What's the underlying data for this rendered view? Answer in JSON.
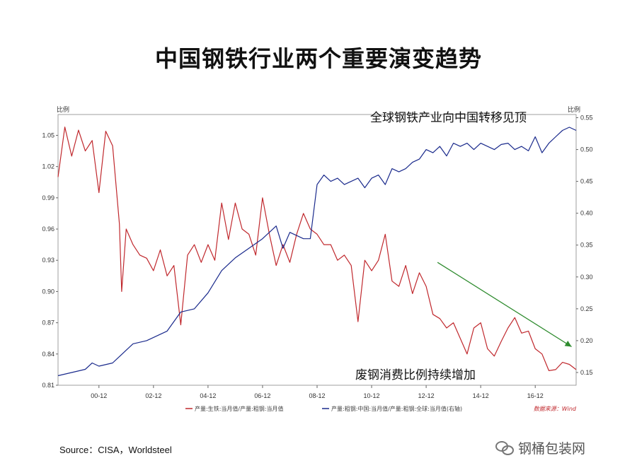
{
  "page": {
    "title": "中国钢铁行业两个重要演变趋势",
    "source": "Source：CISA，Worldsteel",
    "watermark": "钢桶包装网",
    "watermark_icon": "wechat-icon"
  },
  "chart_data": {
    "type": "line",
    "title": "",
    "x_ticks": [
      "00-12",
      "02-12",
      "04-12",
      "06-12",
      "08-12",
      "10-12",
      "12-12",
      "14-12",
      "16-12"
    ],
    "x_range": [
      "1999-06",
      "2018-06"
    ],
    "y_left": {
      "label": "比例",
      "range": [
        0.81,
        1.07
      ],
      "ticks": [
        0.81,
        0.84,
        0.87,
        0.9,
        0.93,
        0.96,
        0.99,
        1.02,
        1.05
      ]
    },
    "y_right": {
      "label": "比例",
      "range": [
        0.13,
        0.555
      ],
      "ticks": [
        0.15,
        0.2,
        0.25,
        0.3,
        0.35,
        0.4,
        0.45,
        0.5,
        0.55
      ]
    },
    "series": [
      {
        "name": "产量:生铁:当月值/产量:粗钢:当月值",
        "axis": "left",
        "color": "#c0282d",
        "points": [
          [
            "1999-06",
            1.01
          ],
          [
            "1999-09",
            1.058
          ],
          [
            "1999-12",
            1.03
          ],
          [
            "2000-03",
            1.055
          ],
          [
            "2000-06",
            1.035
          ],
          [
            "2000-09",
            1.045
          ],
          [
            "2000-12",
            0.995
          ],
          [
            "2001-03",
            1.054
          ],
          [
            "2001-06",
            1.04
          ],
          [
            "2001-09",
            0.965
          ],
          [
            "2001-10",
            0.9
          ],
          [
            "2001-12",
            0.96
          ],
          [
            "2002-03",
            0.945
          ],
          [
            "2002-06",
            0.935
          ],
          [
            "2002-09",
            0.932
          ],
          [
            "2002-12",
            0.92
          ],
          [
            "2003-03",
            0.94
          ],
          [
            "2003-06",
            0.915
          ],
          [
            "2003-09",
            0.925
          ],
          [
            "2003-12",
            0.868
          ],
          [
            "2004-03",
            0.935
          ],
          [
            "2004-06",
            0.945
          ],
          [
            "2004-09",
            0.928
          ],
          [
            "2004-12",
            0.945
          ],
          [
            "2005-03",
            0.93
          ],
          [
            "2005-06",
            0.985
          ],
          [
            "2005-09",
            0.95
          ],
          [
            "2005-12",
            0.985
          ],
          [
            "2006-03",
            0.96
          ],
          [
            "2006-06",
            0.955
          ],
          [
            "2006-09",
            0.935
          ],
          [
            "2006-12",
            0.99
          ],
          [
            "2007-03",
            0.955
          ],
          [
            "2007-06",
            0.925
          ],
          [
            "2007-09",
            0.945
          ],
          [
            "2007-12",
            0.928
          ],
          [
            "2008-03",
            0.955
          ],
          [
            "2008-06",
            0.975
          ],
          [
            "2008-09",
            0.96
          ],
          [
            "2008-12",
            0.955
          ],
          [
            "2009-03",
            0.945
          ],
          [
            "2009-06",
            0.945
          ],
          [
            "2009-09",
            0.93
          ],
          [
            "2009-12",
            0.935
          ],
          [
            "2010-03",
            0.925
          ],
          [
            "2010-06",
            0.871
          ],
          [
            "2010-09",
            0.93
          ],
          [
            "2010-12",
            0.92
          ],
          [
            "2011-03",
            0.93
          ],
          [
            "2011-06",
            0.955
          ],
          [
            "2011-09",
            0.91
          ],
          [
            "2011-12",
            0.905
          ],
          [
            "2012-03",
            0.925
          ],
          [
            "2012-06",
            0.898
          ],
          [
            "2012-09",
            0.918
          ],
          [
            "2012-12",
            0.905
          ],
          [
            "2013-03",
            0.878
          ],
          [
            "2013-06",
            0.874
          ],
          [
            "2013-09",
            0.865
          ],
          [
            "2013-12",
            0.87
          ],
          [
            "2014-03",
            0.855
          ],
          [
            "2014-06",
            0.84
          ],
          [
            "2014-09",
            0.865
          ],
          [
            "2014-12",
            0.87
          ],
          [
            "2015-03",
            0.845
          ],
          [
            "2015-06",
            0.838
          ],
          [
            "2015-09",
            0.852
          ],
          [
            "2015-12",
            0.865
          ],
          [
            "2016-03",
            0.875
          ],
          [
            "2016-06",
            0.86
          ],
          [
            "2016-09",
            0.862
          ],
          [
            "2016-12",
            0.845
          ],
          [
            "2017-03",
            0.84
          ],
          [
            "2017-06",
            0.824
          ],
          [
            "2017-09",
            0.825
          ],
          [
            "2017-12",
            0.832
          ],
          [
            "2018-03",
            0.83
          ],
          [
            "2018-06",
            0.825
          ]
        ]
      },
      {
        "name": "产量:粗钢:中国:当月值/产量:粗钢:全球:当月值(右轴)",
        "axis": "right",
        "color": "#1a2a8c",
        "points": [
          [
            "1999-06",
            0.145
          ],
          [
            "1999-12",
            0.15
          ],
          [
            "2000-06",
            0.155
          ],
          [
            "2000-09",
            0.165
          ],
          [
            "2000-12",
            0.16
          ],
          [
            "2001-06",
            0.165
          ],
          [
            "2001-12",
            0.185
          ],
          [
            "2002-03",
            0.195
          ],
          [
            "2002-09",
            0.2
          ],
          [
            "2002-12",
            0.205
          ],
          [
            "2003-06",
            0.215
          ],
          [
            "2003-12",
            0.245
          ],
          [
            "2004-06",
            0.25
          ],
          [
            "2004-12",
            0.275
          ],
          [
            "2005-06",
            0.31
          ],
          [
            "2005-12",
            0.33
          ],
          [
            "2006-06",
            0.345
          ],
          [
            "2006-12",
            0.36
          ],
          [
            "2007-06",
            0.38
          ],
          [
            "2007-09",
            0.345
          ],
          [
            "2007-12",
            0.37
          ],
          [
            "2008-03",
            0.365
          ],
          [
            "2008-06",
            0.36
          ],
          [
            "2008-09",
            0.36
          ],
          [
            "2008-12",
            0.445
          ],
          [
            "2009-03",
            0.46
          ],
          [
            "2009-06",
            0.45
          ],
          [
            "2009-09",
            0.455
          ],
          [
            "2009-12",
            0.445
          ],
          [
            "2010-03",
            0.45
          ],
          [
            "2010-06",
            0.455
          ],
          [
            "2010-09",
            0.44
          ],
          [
            "2010-12",
            0.455
          ],
          [
            "2011-03",
            0.46
          ],
          [
            "2011-06",
            0.445
          ],
          [
            "2011-09",
            0.47
          ],
          [
            "2011-12",
            0.465
          ],
          [
            "2012-03",
            0.47
          ],
          [
            "2012-06",
            0.48
          ],
          [
            "2012-09",
            0.485
          ],
          [
            "2012-12",
            0.5
          ],
          [
            "2013-03",
            0.495
          ],
          [
            "2013-06",
            0.505
          ],
          [
            "2013-09",
            0.49
          ],
          [
            "2013-12",
            0.51
          ],
          [
            "2014-03",
            0.505
          ],
          [
            "2014-06",
            0.51
          ],
          [
            "2014-09",
            0.5
          ],
          [
            "2014-12",
            0.51
          ],
          [
            "2015-03",
            0.505
          ],
          [
            "2015-06",
            0.5
          ],
          [
            "2015-09",
            0.508
          ],
          [
            "2015-12",
            0.51
          ],
          [
            "2016-03",
            0.5
          ],
          [
            "2016-06",
            0.505
          ],
          [
            "2016-09",
            0.498
          ],
          [
            "2016-12",
            0.52
          ],
          [
            "2017-03",
            0.495
          ],
          [
            "2017-06",
            0.51
          ],
          [
            "2017-09",
            0.52
          ],
          [
            "2017-12",
            0.53
          ],
          [
            "2018-03",
            0.535
          ],
          [
            "2018-06",
            0.53
          ]
        ]
      }
    ],
    "annotations": [
      {
        "text": "全球钢铁产业向中国转移见顶"
      },
      {
        "text": "废钢消费比例持续增加"
      }
    ],
    "trend_arrow": {
      "color": "#2e8b2e",
      "from": [
        "2013-05",
        0.928
      ],
      "to": [
        "2018-04",
        0.847
      ],
      "axis": "left"
    },
    "source_note": "数据来源：Wind",
    "grid": false,
    "legend_position": "bottom"
  }
}
